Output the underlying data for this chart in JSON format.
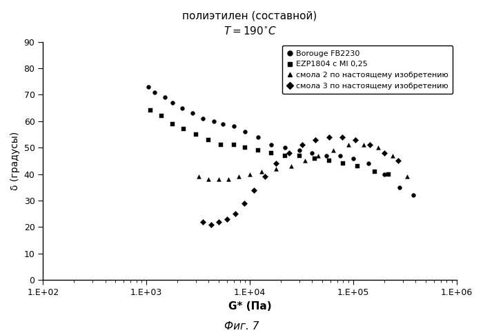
{
  "title_line1": "полиэтилен (составной)",
  "title_line2": "T=190°C",
  "xlabel": "G* (Па)",
  "ylabel": "δ (градусы)",
  "fig_label": "Фиг. 7",
  "xlim_log": [
    100,
    1000000
  ],
  "ylim": [
    0,
    90
  ],
  "yticks": [
    0,
    10,
    20,
    30,
    40,
    50,
    60,
    70,
    80,
    90
  ],
  "xtick_vals": [
    100,
    1000,
    10000,
    100000,
    1000000
  ],
  "xtick_labels": [
    "1.Е+02",
    "1.Е+03",
    "1.Е+04",
    "1.Е+05",
    "1.Е+06"
  ],
  "series": {
    "Borouge FB2230": {
      "marker": "o",
      "color": "#000000",
      "x": [
        1050,
        1200,
        1500,
        1800,
        2200,
        2800,
        3500,
        4500,
        5500,
        7000,
        9000,
        12000,
        16000,
        22000,
        30000,
        40000,
        55000,
        75000,
        100000,
        140000,
        200000,
        280000,
        380000
      ],
      "y": [
        73,
        71,
        69,
        67,
        65,
        63,
        61,
        60,
        59,
        58,
        56,
        54,
        51,
        50,
        49,
        48,
        47,
        47,
        46,
        44,
        40,
        35,
        32
      ]
    },
    "EZP1804 с MI 0,25": {
      "marker": "s",
      "color": "#000000",
      "x": [
        1100,
        1400,
        1800,
        2300,
        3000,
        4000,
        5200,
        7000,
        9000,
        12000,
        16000,
        22000,
        30000,
        42000,
        58000,
        80000,
        110000,
        160000,
        220000
      ],
      "y": [
        64,
        62,
        59,
        57,
        55,
        53,
        51,
        51,
        50,
        49,
        48,
        47,
        47,
        46,
        45,
        44,
        43,
        41,
        40
      ]
    },
    "смола 2 по настоящему изобретению": {
      "marker": "^",
      "color": "#000000",
      "x": [
        3200,
        4000,
        5000,
        6200,
        7800,
        10000,
        13000,
        18000,
        25000,
        34000,
        46000,
        64000,
        90000,
        125000,
        175000,
        240000,
        330000
      ],
      "y": [
        39,
        38,
        38,
        38,
        39,
        40,
        41,
        42,
        43,
        45,
        47,
        49,
        51,
        51,
        50,
        47,
        39
      ]
    },
    "смола 3 по настоящему изобретению": {
      "marker": "D",
      "color": "#000000",
      "x": [
        3500,
        4200,
        5000,
        6000,
        7200,
        8800,
        11000,
        14000,
        18000,
        24000,
        32000,
        43000,
        58000,
        78000,
        105000,
        145000,
        200000,
        270000
      ],
      "y": [
        22,
        21,
        22,
        23,
        25,
        29,
        34,
        39,
        44,
        48,
        51,
        53,
        54,
        54,
        53,
        51,
        48,
        45
      ]
    }
  },
  "background_color": "#ffffff",
  "legend_labels": [
    "Borouge FB2230",
    "EZP1804 с MI 0,25",
    "смола 2 по настоящему изобретению",
    "смола 3 по настоящему изобретению"
  ],
  "legend_markers": [
    "o",
    "s",
    "^",
    "D"
  ]
}
